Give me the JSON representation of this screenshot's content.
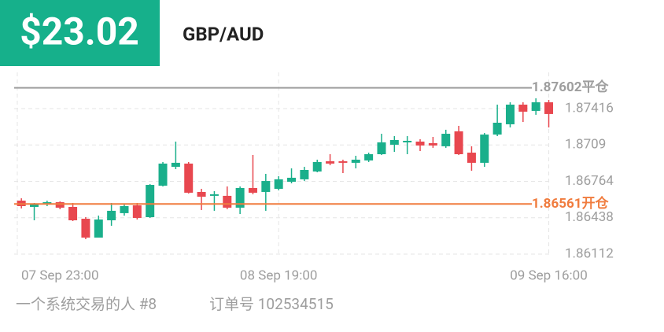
{
  "header": {
    "price": "$23.02",
    "pair": "GBP/AUD"
  },
  "chart_data": {
    "type": "candlestick",
    "categories": [
      "07 Sep  23:00",
      null,
      null,
      null,
      null,
      null,
      null,
      null,
      null,
      null,
      null,
      null,
      null,
      null,
      null,
      null,
      null,
      null,
      null,
      null,
      "08 Sep  19:00",
      null,
      null,
      null,
      null,
      null,
      null,
      null,
      null,
      null,
      null,
      null,
      null,
      null,
      null,
      null,
      null,
      null,
      null,
      null,
      null,
      "09 Sep  16:00"
    ],
    "open": [
      1.86591,
      1.86535,
      1.86556,
      1.86577,
      1.86535,
      1.86429,
      1.8626,
      1.86415,
      1.86479,
      1.86549,
      1.86443,
      1.86725,
      1.86894,
      1.86923,
      1.86669,
      1.86634,
      1.86634,
      1.86528,
      1.86704,
      1.86669,
      1.86697,
      1.8676,
      1.86782,
      1.86852,
      1.86944,
      1.86944,
      1.8693,
      1.86951,
      1.87007,
      1.87092,
      1.87113,
      1.8712,
      1.87106,
      1.87078,
      1.87212,
      1.87021,
      1.8693,
      1.87183,
      1.87275,
      1.87451,
      1.87395,
      1.87472
    ],
    "high": [
      1.86612,
      1.8657,
      1.86591,
      1.86584,
      1.8657,
      1.86443,
      1.86457,
      1.8657,
      1.86563,
      1.8657,
      1.86739,
      1.86937,
      1.8712,
      1.86937,
      1.86697,
      1.86676,
      1.86718,
      1.86718,
      1.87,
      1.86831,
      1.8681,
      1.8688,
      1.86894,
      1.86958,
      1.87007,
      1.86958,
      1.86993,
      1.87021,
      1.8719,
      1.87169,
      1.87169,
      1.87141,
      1.87162,
      1.87226,
      1.87261,
      1.87078,
      1.87197,
      1.87451,
      1.87472,
      1.87472,
      1.87508,
      1.87493
    ],
    "low": [
      1.86521,
      1.86415,
      1.86542,
      1.86514,
      1.86408,
      1.86246,
      1.8626,
      1.86366,
      1.86457,
      1.86422,
      1.86436,
      1.86718,
      1.86873,
      1.86655,
      1.86507,
      1.865,
      1.86514,
      1.86471,
      1.86648,
      1.865,
      1.86683,
      1.86746,
      1.86767,
      1.86845,
      1.86908,
      1.86838,
      1.8688,
      1.86937,
      1.87,
      1.87028,
      1.87007,
      1.87035,
      1.87064,
      1.87064,
      1.87,
      1.86859,
      1.86894,
      1.87169,
      1.87247,
      1.87296,
      1.8736,
      1.87247
    ],
    "close": [
      1.86542,
      1.86556,
      1.86577,
      1.86528,
      1.86415,
      1.8626,
      1.86422,
      1.865,
      1.86542,
      1.86436,
      1.86732,
      1.86923,
      1.8693,
      1.86662,
      1.86626,
      1.86648,
      1.86528,
      1.86704,
      1.86662,
      1.86767,
      1.86782,
      1.86796,
      1.86866,
      1.86937,
      1.86923,
      1.8693,
      1.86958,
      1.87007,
      1.87113,
      1.87134,
      1.87127,
      1.87085,
      1.87085,
      1.8719,
      1.87007,
      1.8693,
      1.87183,
      1.87289,
      1.87451,
      1.87388,
      1.87472,
      1.87367
    ],
    "up_color": "#1aaf8b",
    "down_color": "#e8474f",
    "ylim": [
      1.86112,
      1.8774
    ],
    "yticks": [
      1.86112,
      1.86438,
      1.86764,
      1.8709,
      1.87416
    ],
    "grid": true,
    "levels": [
      {
        "value": 1.87602,
        "label": "1.87602平仓",
        "color": "#9e9e9e"
      },
      {
        "value": 1.86561,
        "label": "1.86561开仓",
        "color": "#f07c3e"
      }
    ]
  },
  "footer": {
    "trader": "一个系统交易的人 #8",
    "order": "订单号 102534515"
  }
}
